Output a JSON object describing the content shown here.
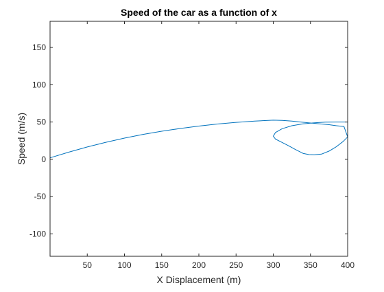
{
  "chart_data": {
    "type": "line",
    "title": "Speed of the car as a function of x",
    "xlabel": "X Displacement (m)",
    "ylabel": "Speed (m/s)",
    "xlim": [
      0,
      400
    ],
    "ylim": [
      -130,
      185
    ],
    "xticks": [
      50,
      100,
      150,
      200,
      250,
      300,
      350,
      400
    ],
    "yticks": [
      -100,
      -50,
      0,
      50,
      100,
      150
    ],
    "xtick_labels": [
      "50",
      "100",
      "150",
      "200",
      "250",
      "300",
      "350",
      "400"
    ],
    "ytick_labels": [
      "-100",
      "-50",
      "0",
      "50",
      "100",
      "150"
    ],
    "grid": false,
    "line_color": "#0072BD",
    "series": [
      {
        "x": [
          0,
          25,
          50,
          75,
          100,
          125,
          150,
          175,
          200,
          225,
          250,
          275,
          300,
          312,
          325,
          337,
          350,
          355,
          365,
          375,
          385,
          395,
          400,
          394,
          385,
          375,
          365,
          355,
          348,
          340,
          330,
          320,
          310,
          303,
          300,
          303,
          312,
          325,
          340,
          355,
          370,
          385,
          400
        ],
        "y": [
          2,
          9.5,
          16.5,
          22.8,
          28.4,
          33.4,
          37.6,
          41.3,
          44.5,
          47.3,
          49.5,
          51.3,
          52.5,
          52.2,
          51.2,
          50,
          48.7,
          48.2,
          47.3,
          46.4,
          45,
          44,
          30,
          24,
          17,
          11,
          7,
          6,
          6.3,
          8,
          13,
          18.5,
          23.5,
          27,
          31,
          36,
          41,
          45,
          47.5,
          49,
          49.8,
          50,
          50
        ]
      }
    ]
  }
}
